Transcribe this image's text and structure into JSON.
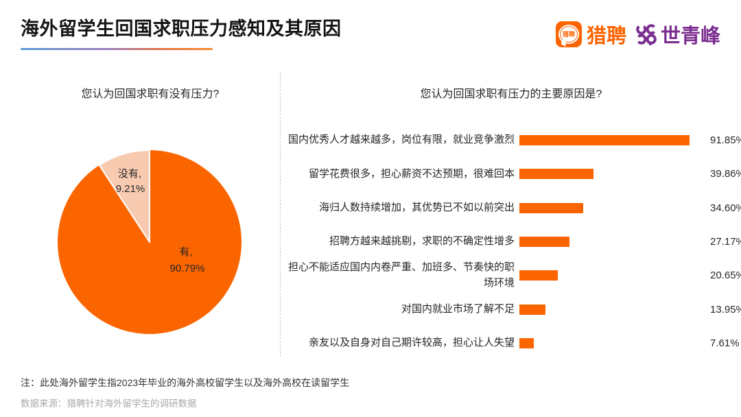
{
  "header": {
    "title": "海外留学生回国求职压力感知及其原因",
    "logos": {
      "liepin": {
        "icon_text": "猎聘",
        "wordmark": "猎聘",
        "color": "#FC6402"
      },
      "shiqingfeng": {
        "wordmark": "世青峰",
        "color": "#7B2E90"
      }
    }
  },
  "chart_data": [
    {
      "type": "pie",
      "title": "您认为回国求职有没有压力?",
      "slices": [
        {
          "label": "有",
          "value": 90.79,
          "label_line1": "有,",
          "label_line2": "90.79%",
          "color": "#FB6500"
        },
        {
          "label": "没有",
          "value": 9.21,
          "label_line1": "没有,",
          "label_line2": "9.21%",
          "color": "#F8CBB1"
        }
      ],
      "start_angle": "12-oclock",
      "note": "有 slice sweeps clockwise from top; 没有 slice fills remainder ending at top"
    },
    {
      "type": "bar",
      "title": "您认为回国求职有压力的主要原因是?",
      "orientation": "horizontal",
      "categories": [
        "国内优秀人才越来越多，岗位有限，就业竞争激烈",
        "留学花费很多，担心薪资不达预期，很难回本",
        "海归人数持续增加，其优势已不如以前突出",
        "招聘方越来越挑剔，求职的不确定性增多",
        "担心不能适应国内内卷严重、加班多、节奏快的职场环境",
        "对国内就业市场了解不足",
        "亲友以及自身对自己期许较高，担心让人失望"
      ],
      "values": [
        91.85,
        39.86,
        34.6,
        27.17,
        20.65,
        13.95,
        7.61
      ],
      "value_labels": [
        "91.85%",
        "39.86%",
        "34.60%",
        "27.17%",
        "20.65%",
        "13.95%",
        "7.61%"
      ],
      "bar_color": "#FB6500",
      "xlim": [
        0,
        100
      ],
      "grid": false,
      "value_label_position": "end-of-bar"
    }
  ],
  "footer": {
    "note": "注：此处海外留学生指2023年毕业的海外高校留学生以及海外高校在读留学生",
    "source": "数据来源：猎聘针对海外留学生的调研数据"
  },
  "colors": {
    "accent_orange": "#FB6500",
    "peach": "#F8CBB1",
    "brand_purple": "#7B2E90",
    "underline_gradient": [
      "#5B9BD5",
      "#9B7FC0",
      "#F78A2D"
    ]
  }
}
